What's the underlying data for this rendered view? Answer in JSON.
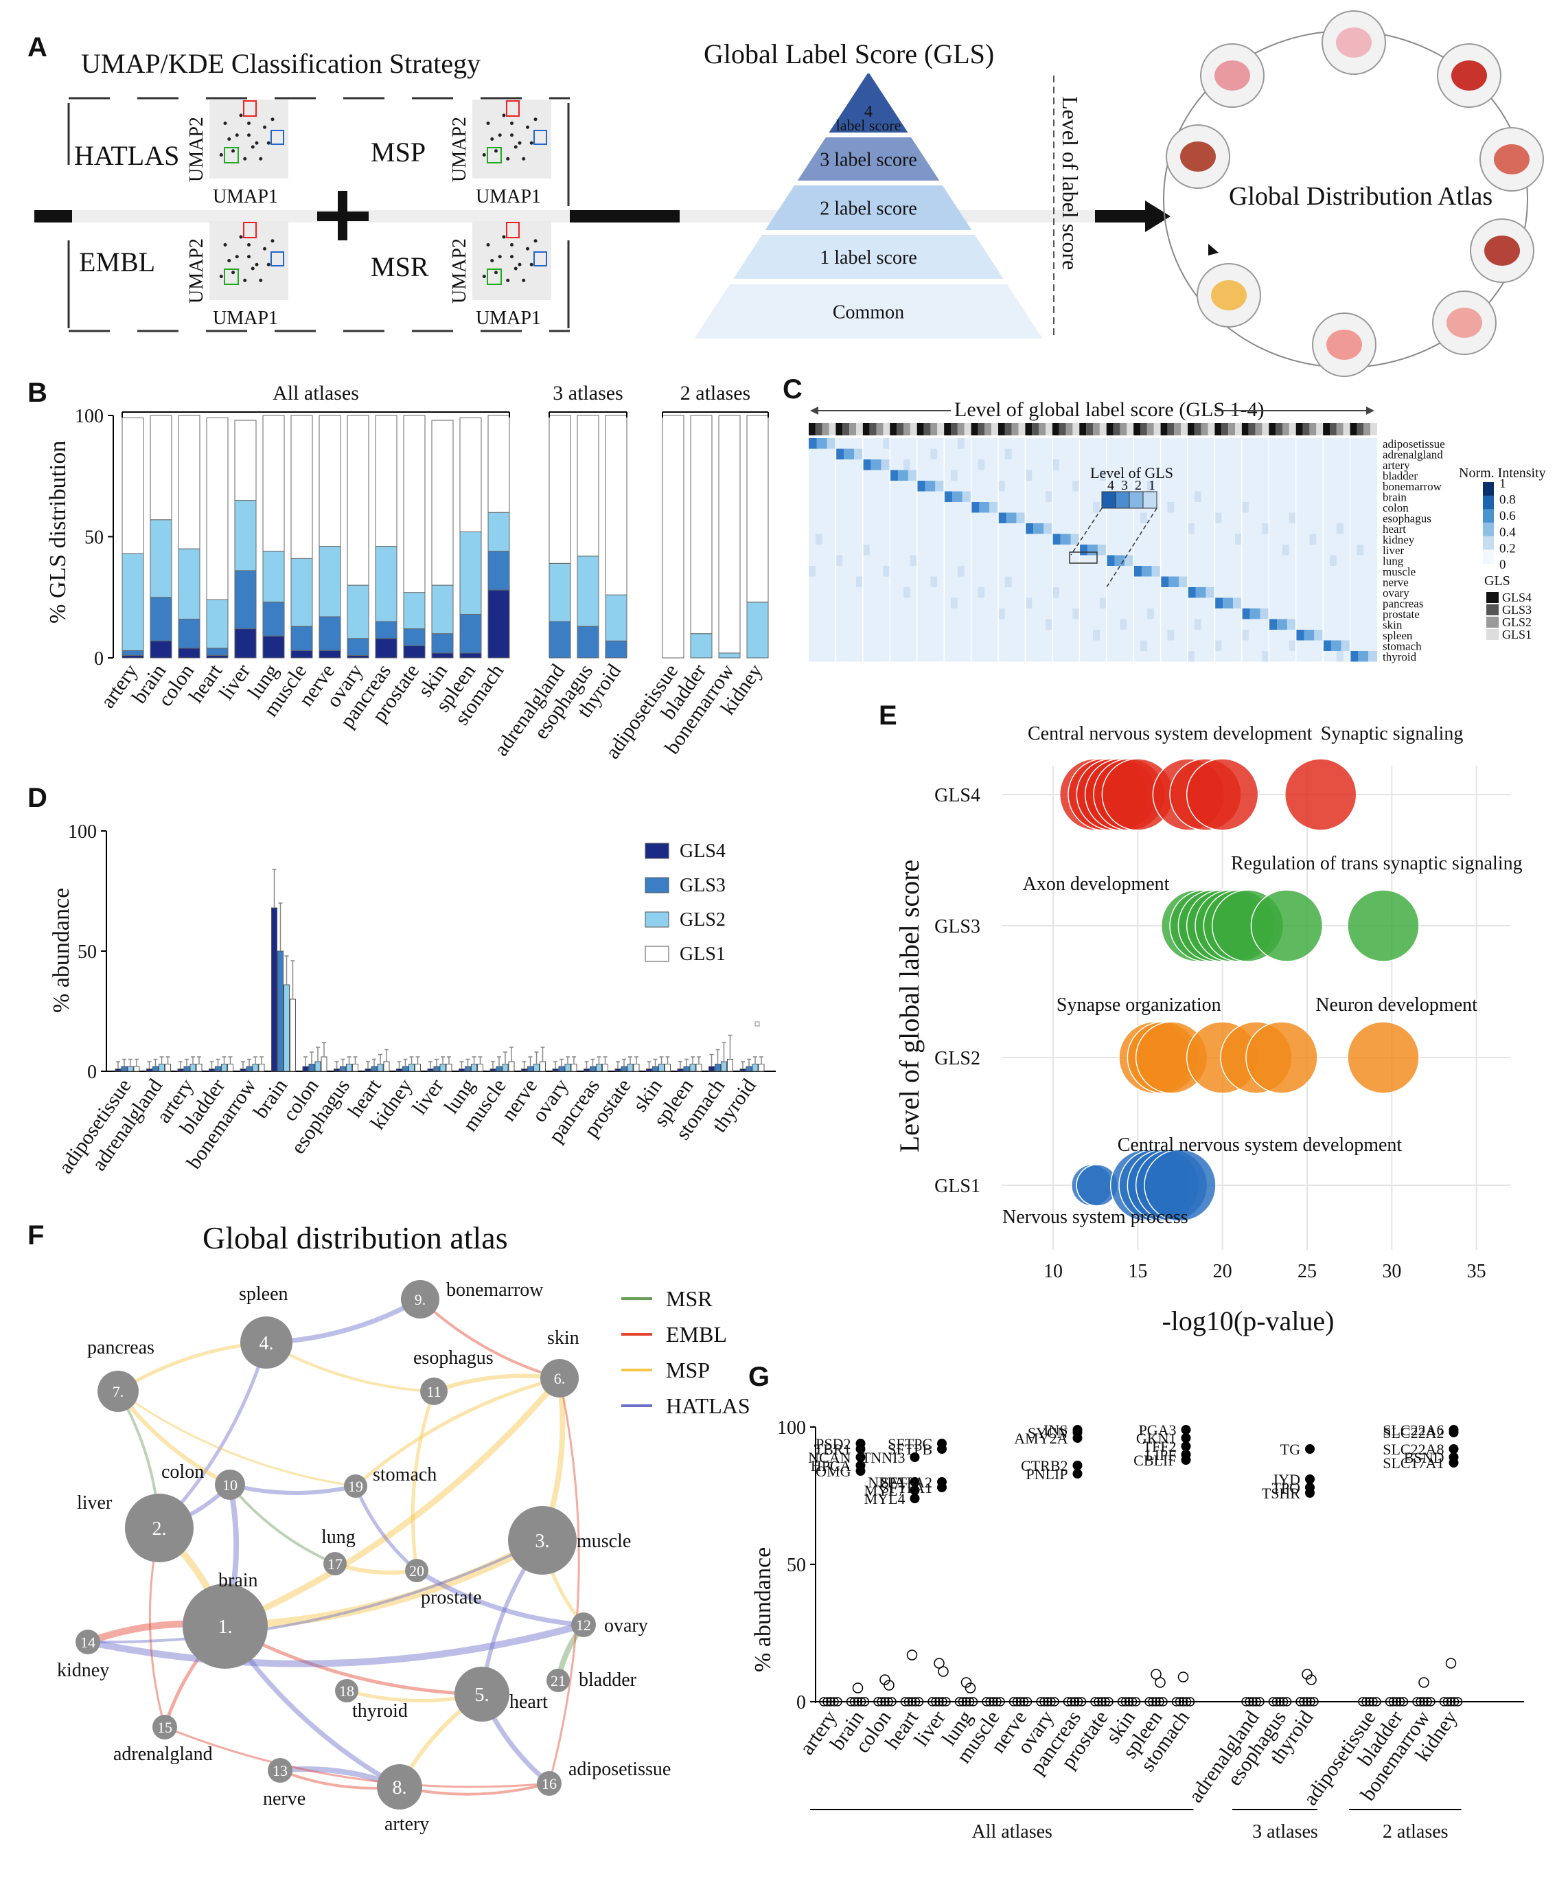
{
  "colors": {
    "gls4": "#1a2a85",
    "gls3": "#3b7ec4",
    "gls2": "#8fd0ee",
    "gls1": "#ffffff",
    "red": "#e02a1a",
    "green": "#3caa3c",
    "orange": "#f28a1a",
    "blue": "#2a6fc0",
    "msr": "#6a9c5a",
    "embl": "#e5452f",
    "msp": "#f6c64a",
    "hatlas": "#6d6fc9",
    "node": "#8c8c8c"
  },
  "panelA": {
    "letter": "A",
    "strategy_title": "UMAP/KDE Classification Strategy",
    "atlases": [
      "HATLAS",
      "MSP",
      "EMBL",
      "MSR"
    ],
    "umap_x": "UMAP1",
    "umap_y": "UMAP2",
    "gls_title": "Global Label Score (GLS)",
    "pyramid": [
      "4\nlabel score",
      "3 label score",
      "2 label score",
      "1 label score",
      "Common"
    ],
    "level_label": "Level of label score",
    "atlas_title": "Global Distribution Atlas"
  },
  "chart_data": [
    {
      "id": "B",
      "type": "bar",
      "stacked": true,
      "ylabel": "% GLS  distribution",
      "ylim": [
        0,
        100
      ],
      "yticks": [
        0,
        50,
        100
      ],
      "groups": [
        {
          "label": "All atlases",
          "categories": [
            "artery",
            "brain",
            "colon",
            "heart",
            "liver",
            "lung",
            "muscle",
            "nerve",
            "ovary",
            "pancreas",
            "prostate",
            "skin",
            "spleen",
            "stomach"
          ]
        },
        {
          "label": "3 atlases",
          "categories": [
            "adrenalgland",
            "esophagus",
            "thyroid"
          ]
        },
        {
          "label": "2 atlases",
          "categories": [
            "adiposetissue",
            "bladder",
            "bonemarrow",
            "kidney"
          ]
        }
      ],
      "series": [
        {
          "name": "GLS4",
          "values": [
            1,
            7,
            4,
            1,
            12,
            9,
            3,
            3,
            1,
            8,
            5,
            2,
            2,
            28,
            0,
            0,
            0,
            0,
            0,
            0,
            0
          ]
        },
        {
          "name": "GLS3",
          "values": [
            2,
            18,
            12,
            3,
            24,
            14,
            10,
            14,
            7,
            7,
            7,
            8,
            16,
            16,
            15,
            13,
            7,
            0,
            0,
            0,
            0
          ]
        },
        {
          "name": "GLS2",
          "values": [
            40,
            32,
            29,
            20,
            29,
            21,
            28,
            29,
            22,
            31,
            15,
            20,
            34,
            16,
            24,
            29,
            19,
            0,
            10,
            2,
            23
          ]
        },
        {
          "name": "GLS1",
          "values": [
            56,
            43,
            55,
            75,
            33,
            56,
            59,
            54,
            70,
            54,
            73,
            68,
            47,
            40,
            61,
            58,
            74,
            100,
            90,
            98,
            77
          ]
        }
      ]
    },
    {
      "id": "C",
      "type": "heatmap",
      "title": "Level of global label score (GLS 1-4)",
      "rows": [
        "adiposetissue",
        "adrenalgland",
        "artery",
        "bladder",
        "bonemarrow",
        "brain",
        "colon",
        "esophagus",
        "heart",
        "kidney",
        "liver",
        "lung",
        "muscle",
        "nerve",
        "ovary",
        "pancreas",
        "prostate",
        "skin",
        "spleen",
        "stomach",
        "thyroid"
      ],
      "inset_label": "Level of GLS",
      "inset_levels": [
        "4",
        "3",
        "2",
        "1"
      ],
      "colorbar_title": "Norm. Intensity",
      "colorbar_ticks": [
        "1",
        "0.8",
        "0.6",
        "0.4",
        "0.2",
        "0"
      ],
      "gls_legend_title": "GLS",
      "gls_legend": [
        "GLS4",
        "GLS3",
        "GLS2",
        "GLS1"
      ]
    },
    {
      "id": "D",
      "type": "bar",
      "ylabel": "% abundance",
      "ylim": [
        0,
        100
      ],
      "yticks": [
        0,
        50,
        100
      ],
      "categories": [
        "adiposetissue",
        "adrenalgland",
        "artery",
        "bladder",
        "bonemarrow",
        "brain",
        "colon",
        "esophagus",
        "heart",
        "kidney",
        "liver",
        "lung",
        "muscle",
        "nerve",
        "ovary",
        "pancreas",
        "prostate",
        "skin",
        "spleen",
        "stomach",
        "thyroid"
      ],
      "series": [
        {
          "name": "GLS4",
          "values": [
            1,
            1,
            1,
            1,
            1,
            68,
            2,
            1,
            1,
            1,
            1,
            1,
            1,
            1,
            1,
            1,
            1,
            1,
            1,
            2,
            1
          ]
        },
        {
          "name": "GLS3",
          "values": [
            2,
            2,
            2,
            2,
            2,
            50,
            3,
            2,
            2,
            2,
            2,
            2,
            2,
            2,
            2,
            2,
            2,
            2,
            2,
            3,
            2
          ]
        },
        {
          "name": "GLS2",
          "values": [
            2,
            3,
            3,
            3,
            3,
            36,
            4,
            3,
            3,
            3,
            3,
            3,
            3,
            3,
            3,
            3,
            3,
            3,
            3,
            4,
            3
          ]
        },
        {
          "name": "GLS1",
          "values": [
            2,
            3,
            3,
            3,
            3,
            30,
            6,
            3,
            4,
            3,
            3,
            3,
            4,
            4,
            3,
            3,
            3,
            3,
            3,
            5,
            3
          ]
        }
      ],
      "errors": [
        [
          3,
          3,
          3,
          3,
          3,
          16,
          4,
          3,
          3,
          3,
          3,
          3,
          3,
          3,
          3,
          3,
          3,
          3,
          3,
          5,
          3
        ],
        [
          3,
          3,
          3,
          3,
          3,
          20,
          5,
          3,
          3,
          3,
          3,
          3,
          4,
          4,
          3,
          3,
          3,
          3,
          3,
          6,
          3
        ],
        [
          3,
          3,
          3,
          3,
          3,
          12,
          6,
          3,
          4,
          3,
          3,
          3,
          5,
          5,
          3,
          3,
          3,
          3,
          3,
          8,
          3
        ],
        [
          3,
          3,
          3,
          3,
          3,
          16,
          6,
          3,
          5,
          3,
          3,
          3,
          6,
          6,
          3,
          3,
          3,
          3,
          3,
          10,
          3
        ]
      ]
    },
    {
      "id": "E",
      "type": "scatter",
      "ylabel": "Level of global label score",
      "xlabel": "-log10(p-value)",
      "xlim": [
        7,
        37
      ],
      "xticks": [
        10,
        15,
        20,
        25,
        30,
        35
      ],
      "categories": [
        "GLS4",
        "GLS3",
        "GLS2",
        "GLS1"
      ],
      "series": [
        {
          "name": "GLS4",
          "x": [
            12.5,
            13,
            13.5,
            14,
            14.5,
            15,
            18,
            19,
            20,
            25.8
          ]
        },
        {
          "name": "GLS3",
          "x": [
            18.5,
            19,
            19.5,
            20,
            20.5,
            21,
            21.5,
            23.8,
            29.5
          ]
        },
        {
          "name": "GLS2",
          "x": [
            16,
            16.5,
            17,
            20,
            22,
            23.5,
            29.5
          ]
        },
        {
          "name": "GLS1",
          "x": [
            12.3,
            12.6,
            15.5,
            16,
            16.5,
            17,
            17.5
          ]
        }
      ],
      "annotations": [
        {
          "text": "Central nervous system development",
          "cat": "GLS4",
          "x": 8.5,
          "dy": -80
        },
        {
          "text": "Synaptic signaling",
          "cat": "GLS4",
          "x": 25.8,
          "dy": -80
        },
        {
          "text": "Regulation of trans synaptic signaling",
          "cat": "GLS3",
          "x": 20.5,
          "dy": -82
        },
        {
          "text": "Axon development",
          "cat": "GLS3",
          "x": 8.2,
          "dy": -52
        },
        {
          "text": "Synapse  organization",
          "cat": "GLS2",
          "x": 10.2,
          "dy": -68
        },
        {
          "text": "Neuron development",
          "cat": "GLS2",
          "x": 25.5,
          "dy": -68
        },
        {
          "text": "Central nervous system development",
          "cat": "GLS1",
          "x": 13.8,
          "dy": -50
        },
        {
          "text": "Nervous system process",
          "cat": "GLS1",
          "x": 7,
          "dy": 55
        }
      ]
    },
    {
      "id": "G",
      "type": "scatter",
      "ylabel": "% abundance",
      "ylim": [
        0,
        100
      ],
      "yticks": [
        0,
        50,
        100
      ],
      "groups": [
        {
          "label": "All atlases",
          "categories": [
            "artery",
            "brain",
            "colon",
            "heart",
            "liver",
            "lung",
            "muscle",
            "nerve",
            "ovary",
            "pancreas",
            "prostate",
            "skin",
            "spleen",
            "stomach"
          ]
        },
        {
          "label": "3 atlases",
          "categories": [
            "adrenalgland",
            "esophagus",
            "thyroid"
          ]
        },
        {
          "label": "2 atlases",
          "categories": [
            "adiposetissue",
            "bladder",
            "bonemarrow",
            "kidney"
          ]
        }
      ],
      "outliers": {
        "brain": [
          5
        ],
        "colon": [
          8,
          6
        ],
        "heart": [
          17
        ],
        "liver": [
          14,
          11
        ],
        "lung": [
          7,
          5
        ],
        "spleen": [
          10,
          7
        ],
        "stomach": [
          9
        ],
        "thyroid": [
          10,
          8
        ],
        "bonemarrow": [
          7
        ],
        "kidney": [
          14
        ]
      },
      "labeled_genes": [
        {
          "tissue": "brain",
          "genes": [
            "PSD2",
            "TBR1",
            "NCAN",
            "HPCA",
            "OMG"
          ],
          "values": [
            94,
            92,
            89,
            86,
            84
          ]
        },
        {
          "tissue": "heart",
          "genes": [
            "TNNI3",
            "NPPA",
            "MYL7",
            "MYL4"
          ],
          "values": [
            89,
            80,
            77,
            74
          ]
        },
        {
          "tissue": "liver",
          "genes": [
            "SFTPC",
            "SFTPB",
            "SFTPA2",
            "SFTPA1"
          ],
          "values": [
            94,
            92,
            80,
            78
          ]
        },
        {
          "tissue": "pancreas",
          "genes": [
            "INS",
            "SYCN",
            "AMY2A",
            "CTRB2",
            "PNLIP"
          ],
          "values": [
            99,
            98,
            96,
            86,
            83
          ]
        },
        {
          "tissue": "stomach",
          "genes": [
            "PGA3",
            "GKN1",
            "TFF2",
            "LIPF",
            "CBLIF"
          ],
          "values": [
            99,
            96,
            93,
            90,
            88
          ]
        },
        {
          "tissue": "thyroid",
          "genes": [
            "TG",
            "IYD",
            "TPO",
            "TSHR"
          ],
          "values": [
            92,
            81,
            78,
            76
          ]
        },
        {
          "tissue": "kidney",
          "genes": [
            "SLC22A6",
            "SLC22A2",
            "SLC22A8",
            "BSND",
            "SLC17A1"
          ],
          "values": [
            99,
            98,
            92,
            89,
            87
          ]
        }
      ]
    }
  ],
  "panelF": {
    "letter": "F",
    "title": "Global distribution atlas",
    "legend": [
      "MSR",
      "EMBL",
      "MSP",
      "HATLAS"
    ],
    "nodes": [
      {
        "num": "1.",
        "name": "brain"
      },
      {
        "num": "2.",
        "name": "liver"
      },
      {
        "num": "3.",
        "name": "muscle"
      },
      {
        "num": "4.",
        "name": "spleen"
      },
      {
        "num": "5.",
        "name": "heart"
      },
      {
        "num": "6.",
        "name": "skin"
      },
      {
        "num": "7.",
        "name": "pancreas"
      },
      {
        "num": "8.",
        "name": "artery"
      },
      {
        "num": "9.",
        "name": "bonemarrow"
      },
      {
        "num": "10",
        "name": "colon"
      },
      {
        "num": "11",
        "name": "esophagus"
      },
      {
        "num": "12",
        "name": "ovary"
      },
      {
        "num": "13",
        "name": "nerve"
      },
      {
        "num": "14",
        "name": "kidney"
      },
      {
        "num": "15",
        "name": "adrenalgland"
      },
      {
        "num": "16",
        "name": "adiposetissue"
      },
      {
        "num": "17",
        "name": "lung"
      },
      {
        "num": "18",
        "name": "thyroid"
      },
      {
        "num": "19",
        "name": "stomach"
      },
      {
        "num": "20",
        "name": "prostate"
      },
      {
        "num": "21",
        "name": "bladder"
      }
    ]
  }
}
